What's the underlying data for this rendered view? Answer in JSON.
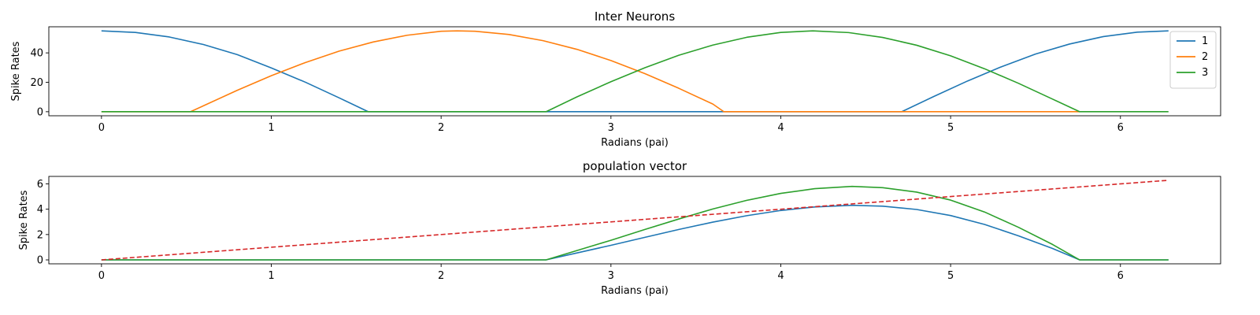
{
  "chart_data": [
    {
      "type": "line",
      "title": "Inter Neurons",
      "xlabel": "Radians (pai)",
      "ylabel": "Spike Rates",
      "xlim": [
        -0.31,
        6.59
      ],
      "ylim": [
        -2.75,
        57.75
      ],
      "xticks": [
        0,
        1,
        2,
        3,
        4,
        5,
        6
      ],
      "yticks": [
        0,
        20,
        40
      ],
      "grid": false,
      "legend": "top-right",
      "series": [
        {
          "name": "1",
          "color": "#1f77b4",
          "style": "solid",
          "points": [
            [
              0,
              55
            ],
            [
              0.2,
              53.9
            ],
            [
              0.4,
              50.8
            ],
            [
              0.6,
              45.7
            ],
            [
              0.8,
              38.8
            ],
            [
              1.0,
              29.8
            ],
            [
              1.2,
              20.1
            ],
            [
              1.4,
              9.4
            ],
            [
              1.571,
              0
            ],
            [
              2.0,
              0
            ],
            [
              3.0,
              0
            ],
            [
              4.0,
              0
            ],
            [
              4.712,
              0
            ],
            [
              4.9,
              10.3
            ],
            [
              5.1,
              20.9
            ],
            [
              5.3,
              30.6
            ],
            [
              5.5,
              39.2
            ],
            [
              5.7,
              46.0
            ],
            [
              5.9,
              51.1
            ],
            [
              6.1,
              54.1
            ],
            [
              6.283,
              55
            ]
          ]
        },
        {
          "name": "2",
          "color": "#ff7f0e",
          "style": "solid",
          "points": [
            [
              0,
              0
            ],
            [
              0.524,
              0
            ],
            [
              0.6,
              4.0
            ],
            [
              0.8,
              14.6
            ],
            [
              1.0,
              24.5
            ],
            [
              1.2,
              33.4
            ],
            [
              1.4,
              41.2
            ],
            [
              1.6,
              47.4
            ],
            [
              1.8,
              52.0
            ],
            [
              2.0,
              54.7
            ],
            [
              2.094,
              55
            ],
            [
              2.2,
              54.7
            ],
            [
              2.4,
              52.5
            ],
            [
              2.6,
              48.3
            ],
            [
              2.8,
              42.4
            ],
            [
              3.0,
              34.8
            ],
            [
              3.2,
              25.9
            ],
            [
              3.4,
              15.9
            ],
            [
              3.6,
              5.2
            ],
            [
              3.665,
              0
            ],
            [
              4.5,
              0
            ],
            [
              5.5,
              0
            ],
            [
              5.76,
              0
            ]
          ]
        },
        {
          "name": "3",
          "color": "#2ca02c",
          "style": "solid",
          "points": [
            [
              0,
              0
            ],
            [
              1.0,
              0
            ],
            [
              2.0,
              0
            ],
            [
              2.618,
              0
            ],
            [
              2.8,
              10.1
            ],
            [
              3.0,
              20.4
            ],
            [
              3.2,
              29.9
            ],
            [
              3.4,
              38.4
            ],
            [
              3.6,
              45.3
            ],
            [
              3.8,
              50.6
            ],
            [
              4.0,
              53.9
            ],
            [
              4.189,
              55
            ],
            [
              4.4,
              53.8
            ],
            [
              4.6,
              50.5
            ],
            [
              4.8,
              45.2
            ],
            [
              5.0,
              38.0
            ],
            [
              5.2,
              29.2
            ],
            [
              5.4,
              19.3
            ],
            [
              5.6,
              8.6
            ],
            [
              5.76,
              0
            ],
            [
              6.0,
              0
            ],
            [
              6.283,
              0
            ]
          ]
        }
      ]
    },
    {
      "type": "line",
      "title": "population vector",
      "xlabel": "Radians (pai)",
      "ylabel": "Spike Rates",
      "xlim": [
        -0.31,
        6.59
      ],
      "ylim": [
        -0.31,
        6.59
      ],
      "xticks": [
        0,
        1,
        2,
        3,
        4,
        5,
        6
      ],
      "yticks": [
        0,
        2,
        4,
        6
      ],
      "grid": false,
      "series": [
        {
          "color": "#1f77b4",
          "style": "solid",
          "points": [
            [
              0,
              0
            ],
            [
              1.0,
              0
            ],
            [
              2.0,
              0
            ],
            [
              2.618,
              0
            ],
            [
              2.8,
              0.55
            ],
            [
              3.0,
              1.15
            ],
            [
              3.2,
              1.78
            ],
            [
              3.4,
              2.4
            ],
            [
              3.6,
              2.98
            ],
            [
              3.8,
              3.49
            ],
            [
              4.0,
              3.9
            ],
            [
              4.2,
              4.18
            ],
            [
              4.42,
              4.31
            ],
            [
              4.6,
              4.24
            ],
            [
              4.8,
              3.98
            ],
            [
              5.0,
              3.5
            ],
            [
              5.2,
              2.8
            ],
            [
              5.4,
              1.9
            ],
            [
              5.6,
              0.9
            ],
            [
              5.76,
              0
            ],
            [
              6.0,
              0
            ],
            [
              6.283,
              0
            ]
          ]
        },
        {
          "color": "#2ca02c",
          "style": "solid",
          "points": [
            [
              0,
              0
            ],
            [
              1.0,
              0
            ],
            [
              2.0,
              0
            ],
            [
              2.618,
              0
            ],
            [
              2.8,
              0.74
            ],
            [
              3.0,
              1.55
            ],
            [
              3.2,
              2.4
            ],
            [
              3.4,
              3.23
            ],
            [
              3.6,
              4.02
            ],
            [
              3.8,
              4.7
            ],
            [
              4.0,
              5.25
            ],
            [
              4.2,
              5.62
            ],
            [
              4.42,
              5.8
            ],
            [
              4.6,
              5.7
            ],
            [
              4.8,
              5.35
            ],
            [
              5.0,
              4.72
            ],
            [
              5.2,
              3.78
            ],
            [
              5.4,
              2.57
            ],
            [
              5.6,
              1.22
            ],
            [
              5.76,
              0
            ],
            [
              6.0,
              0
            ],
            [
              6.283,
              0
            ]
          ]
        },
        {
          "color": "#d62728",
          "style": "dashed",
          "points": [
            [
              0,
              0
            ],
            [
              6.283,
              6.283
            ]
          ]
        }
      ]
    }
  ]
}
